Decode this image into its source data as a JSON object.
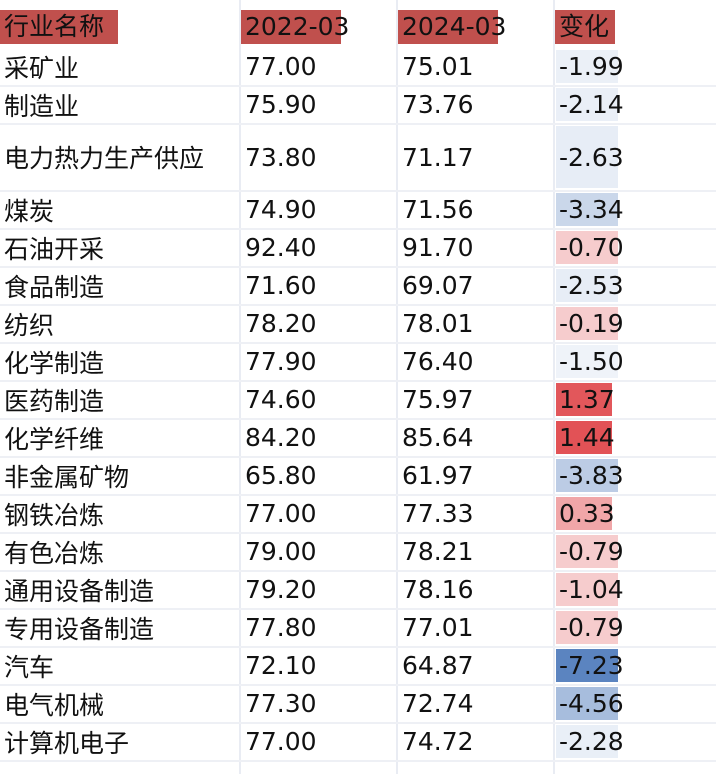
{
  "header": {
    "name": "行业名称",
    "y2022": "2022-03",
    "y2024": "2024-03",
    "change": "变化",
    "highlight_color": "#c0504d"
  },
  "colors": {
    "positive": "#e0494d",
    "negative": "#5b84c0"
  },
  "rows": [
    {
      "name": "采矿业",
      "v2022": "77.00",
      "v2024": "75.01",
      "change": "-1.99",
      "change_value": -1.99
    },
    {
      "name": "制造业",
      "v2022": "75.90",
      "v2024": "73.76",
      "change": "-2.14",
      "change_value": -2.14
    },
    {
      "name": "电力热力生产供应",
      "v2022": "73.80",
      "v2024": "71.17",
      "change": "-2.63",
      "change_value": -2.63
    },
    {
      "name": "煤炭",
      "v2022": "74.90",
      "v2024": "71.56",
      "change": "-3.34",
      "change_value": -3.34
    },
    {
      "name": "石油开采",
      "v2022": "92.40",
      "v2024": "91.70",
      "change": "-0.70",
      "change_value": -0.7
    },
    {
      "name": "食品制造",
      "v2022": "71.60",
      "v2024": "69.07",
      "change": "-2.53",
      "change_value": -2.53
    },
    {
      "name": "纺织",
      "v2022": "78.20",
      "v2024": "78.01",
      "change": "-0.19",
      "change_value": -0.19
    },
    {
      "name": "化学制造",
      "v2022": "77.90",
      "v2024": "76.40",
      "change": "-1.50",
      "change_value": -1.5
    },
    {
      "name": "医药制造",
      "v2022": "74.60",
      "v2024": "75.97",
      "change": "1.37",
      "change_value": 1.37
    },
    {
      "name": "化学纤维",
      "v2022": "84.20",
      "v2024": "85.64",
      "change": "1.44",
      "change_value": 1.44
    },
    {
      "name": "非金属矿物",
      "v2022": "65.80",
      "v2024": "61.97",
      "change": "-3.83",
      "change_value": -3.83
    },
    {
      "name": "钢铁冶炼",
      "v2022": "77.00",
      "v2024": "77.33",
      "change": "0.33",
      "change_value": 0.33
    },
    {
      "name": "有色冶炼",
      "v2022": "79.00",
      "v2024": "78.21",
      "change": "-0.79",
      "change_value": -0.79
    },
    {
      "name": "通用设备制造",
      "v2022": "79.20",
      "v2024": "78.16",
      "change": "-1.04",
      "change_value": -1.04
    },
    {
      "name": "专用设备制造",
      "v2022": "77.80",
      "v2024": "77.01",
      "change": "-0.79",
      "change_value": -0.79
    },
    {
      "name": "汽车",
      "v2022": "72.10",
      "v2024": "64.87",
      "change": "-7.23",
      "change_value": -7.23
    },
    {
      "name": "电气机械",
      "v2022": "77.30",
      "v2024": "72.74",
      "change": "-4.56",
      "change_value": -4.56
    },
    {
      "name": "计算机电子",
      "v2022": "77.00",
      "v2024": "74.72",
      "change": "-2.28",
      "change_value": -2.28
    }
  ]
}
